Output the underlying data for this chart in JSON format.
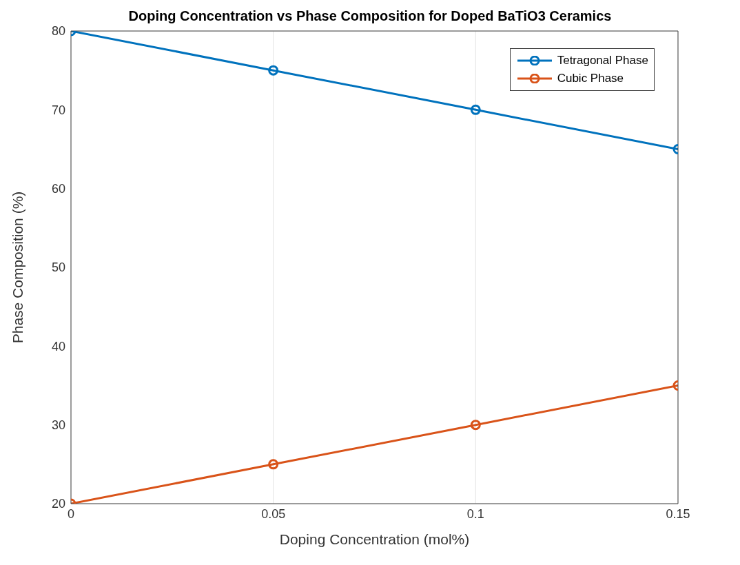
{
  "chart_data": {
    "type": "line",
    "title": "Doping Concentration vs Phase Composition for Doped BaTiO3 Ceramics",
    "xlabel": "Doping Concentration (mol%)",
    "ylabel": "Phase Composition (%)",
    "x": [
      0,
      0.05,
      0.1,
      0.15
    ],
    "series": [
      {
        "name": "Tetragonal Phase",
        "color": "#0072bd",
        "values": [
          80,
          75,
          70,
          65
        ]
      },
      {
        "name": "Cubic Phase",
        "color": "#d95319",
        "values": [
          20,
          25,
          30,
          35
        ]
      }
    ],
    "xlim": [
      0,
      0.15
    ],
    "xticks": [
      0,
      0.05,
      0.1,
      0.15
    ],
    "ylim": [
      20,
      80
    ],
    "yticks": [
      20,
      30,
      40,
      50,
      60,
      70,
      80
    ],
    "grid": true,
    "legend": "top right",
    "marker": "circle",
    "line_style": "solid"
  }
}
